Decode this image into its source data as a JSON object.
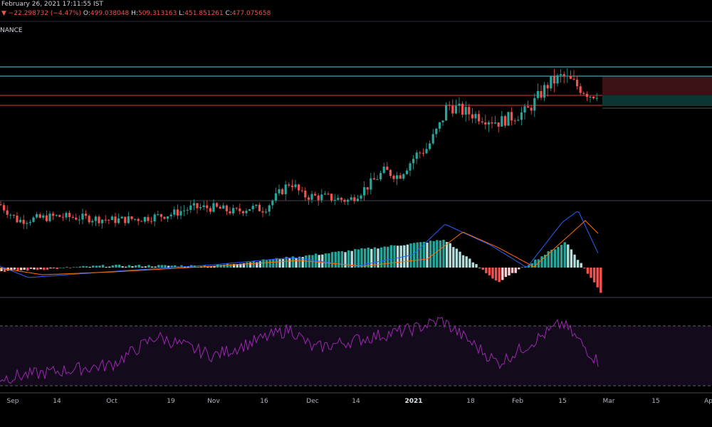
{
  "header": {
    "datetime": "February 26, 2021 17:11:55 IST",
    "change_arrow": "▼",
    "change": "−22.298732 (−4.47%)",
    "open_label": "O:",
    "open": "499.038048",
    "high_label": "H:",
    "high": "509.313163",
    "low_label": "L:",
    "low": "451.851261",
    "close_label": "C:",
    "close": "477.075658",
    "exchange": "NANCE"
  },
  "colors": {
    "up": "#26a69a",
    "down": "#ef5350",
    "macd_line": "#2962ff",
    "signal_line": "#ff6d00",
    "rsi_line": "#9c27b0",
    "cyan_level": "#4dd0e1",
    "red_level": "#e53935"
  },
  "chart_data": [
    {
      "type": "candlestick",
      "x_tick_labels": [
        "Sep",
        "14",
        "Oct",
        "19",
        "Nov",
        "16",
        "Dec",
        "14",
        "2021",
        "18",
        "Feb",
        "15",
        "Mar",
        "15",
        "Ap"
      ],
      "approx_close": [
        [
          "Sep 01",
          268
        ],
        [
          "Sep 07",
          238
        ],
        [
          "Sep 14",
          246
        ],
        [
          "Sep 21",
          243
        ],
        [
          "Sep 28",
          239
        ],
        [
          "Oct 05",
          242
        ],
        [
          "Oct 12",
          250
        ],
        [
          "Oct 19",
          262
        ],
        [
          "Oct 26",
          262
        ],
        [
          "Nov 02",
          254
        ],
        [
          "Nov 09",
          262
        ],
        [
          "Nov 16",
          259
        ],
        [
          "Nov 23",
          310
        ],
        [
          "Nov 30",
          284
        ],
        [
          "Dec 07",
          281
        ],
        [
          "Dec 14",
          275
        ],
        [
          "Dec 21",
          300
        ],
        [
          "Dec 28",
          330
        ],
        [
          "Jan 04",
          320
        ],
        [
          "Jan 07",
          360
        ],
        [
          "Jan 10",
          372
        ],
        [
          "Jan 14",
          420
        ],
        [
          "Jan 20",
          452
        ],
        [
          "Jan 27",
          440
        ],
        [
          "Feb 03",
          420
        ],
        [
          "Feb 10",
          440
        ],
        [
          "Feb 14",
          490
        ],
        [
          "Feb 18",
          505
        ],
        [
          "Feb 22",
          470
        ],
        [
          "Feb 26",
          477
        ]
      ],
      "horizontal_levels": {
        "cyan": [
          522,
          503
        ],
        "red": [
          470,
          451
        ]
      }
    },
    {
      "type": "bar",
      "name": "MACD",
      "approx_histogram": [
        [
          "Sep",
          -2
        ],
        [
          "Oct",
          1
        ],
        [
          "Nov",
          1
        ],
        [
          "Dec",
          6
        ],
        [
          "Jan",
          15
        ],
        [
          "Late Jan",
          -8
        ],
        [
          "Feb 15",
          14
        ],
        [
          "Feb 26",
          -14
        ]
      ]
    },
    {
      "type": "line",
      "name": "RSI",
      "levels": [
        70,
        30
      ],
      "approx_values": [
        [
          "Sep",
          35
        ],
        [
          "Oct",
          44
        ],
        [
          "Oct 19",
          63
        ],
        [
          "Nov",
          50
        ],
        [
          "Nov 23",
          68
        ],
        [
          "Dec",
          55
        ],
        [
          "Jan",
          68
        ],
        [
          "Jan 14",
          74
        ],
        [
          "Feb 01",
          45
        ],
        [
          "Feb 15",
          72
        ],
        [
          "Feb 26",
          45
        ]
      ]
    }
  ]
}
